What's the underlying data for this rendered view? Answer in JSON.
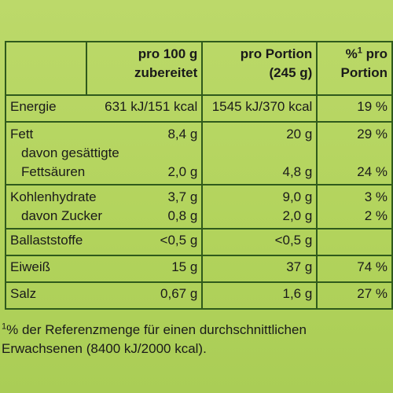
{
  "header": {
    "col_100g_line1": "pro 100 g",
    "col_100g_line2": "zubereitet",
    "col_portion_line1": "pro Portion",
    "col_portion_line2": "(245 g)",
    "col_pct_sup": "1",
    "col_pct_line1a": "%",
    "col_pct_line1b": " pro",
    "col_pct_line2": "Portion"
  },
  "rows": {
    "energie": {
      "label": "Energie",
      "v100": "631 kJ/151 kcal",
      "vportion": "1545 kJ/370 kcal",
      "pct": "19 %"
    },
    "fett": {
      "label": "Fett",
      "v100": "8,4 g",
      "vportion": "20 g",
      "pct": "29 %"
    },
    "fett_sub_line1": "davon gesättigte",
    "fett_sub": {
      "label": "Fettsäuren",
      "v100": "2,0 g",
      "vportion": "4,8 g",
      "pct": "24 %"
    },
    "kh": {
      "label": "Kohlenhydrate",
      "v100": "3,7 g",
      "vportion": "9,0 g",
      "pct": "3 %"
    },
    "zucker": {
      "label": "davon Zucker",
      "v100": "0,8 g",
      "vportion": "2,0 g",
      "pct": "2 %"
    },
    "ballast": {
      "label": "Ballaststoffe",
      "v100": "<0,5 g",
      "vportion": "<0,5 g",
      "pct": ""
    },
    "eiweiss": {
      "label": "Eiweiß",
      "v100": "15 g",
      "vportion": "37 g",
      "pct": "74 %"
    },
    "salz": {
      "label": "Salz",
      "v100": "0,67 g",
      "vportion": "1,6 g",
      "pct": "27 %"
    }
  },
  "footnote": {
    "sup": "1",
    "line1": "% der Referenzmenge für einen durchschnittlichen",
    "line2": "Erwachsenen (8400 kJ/2000 kcal)."
  }
}
